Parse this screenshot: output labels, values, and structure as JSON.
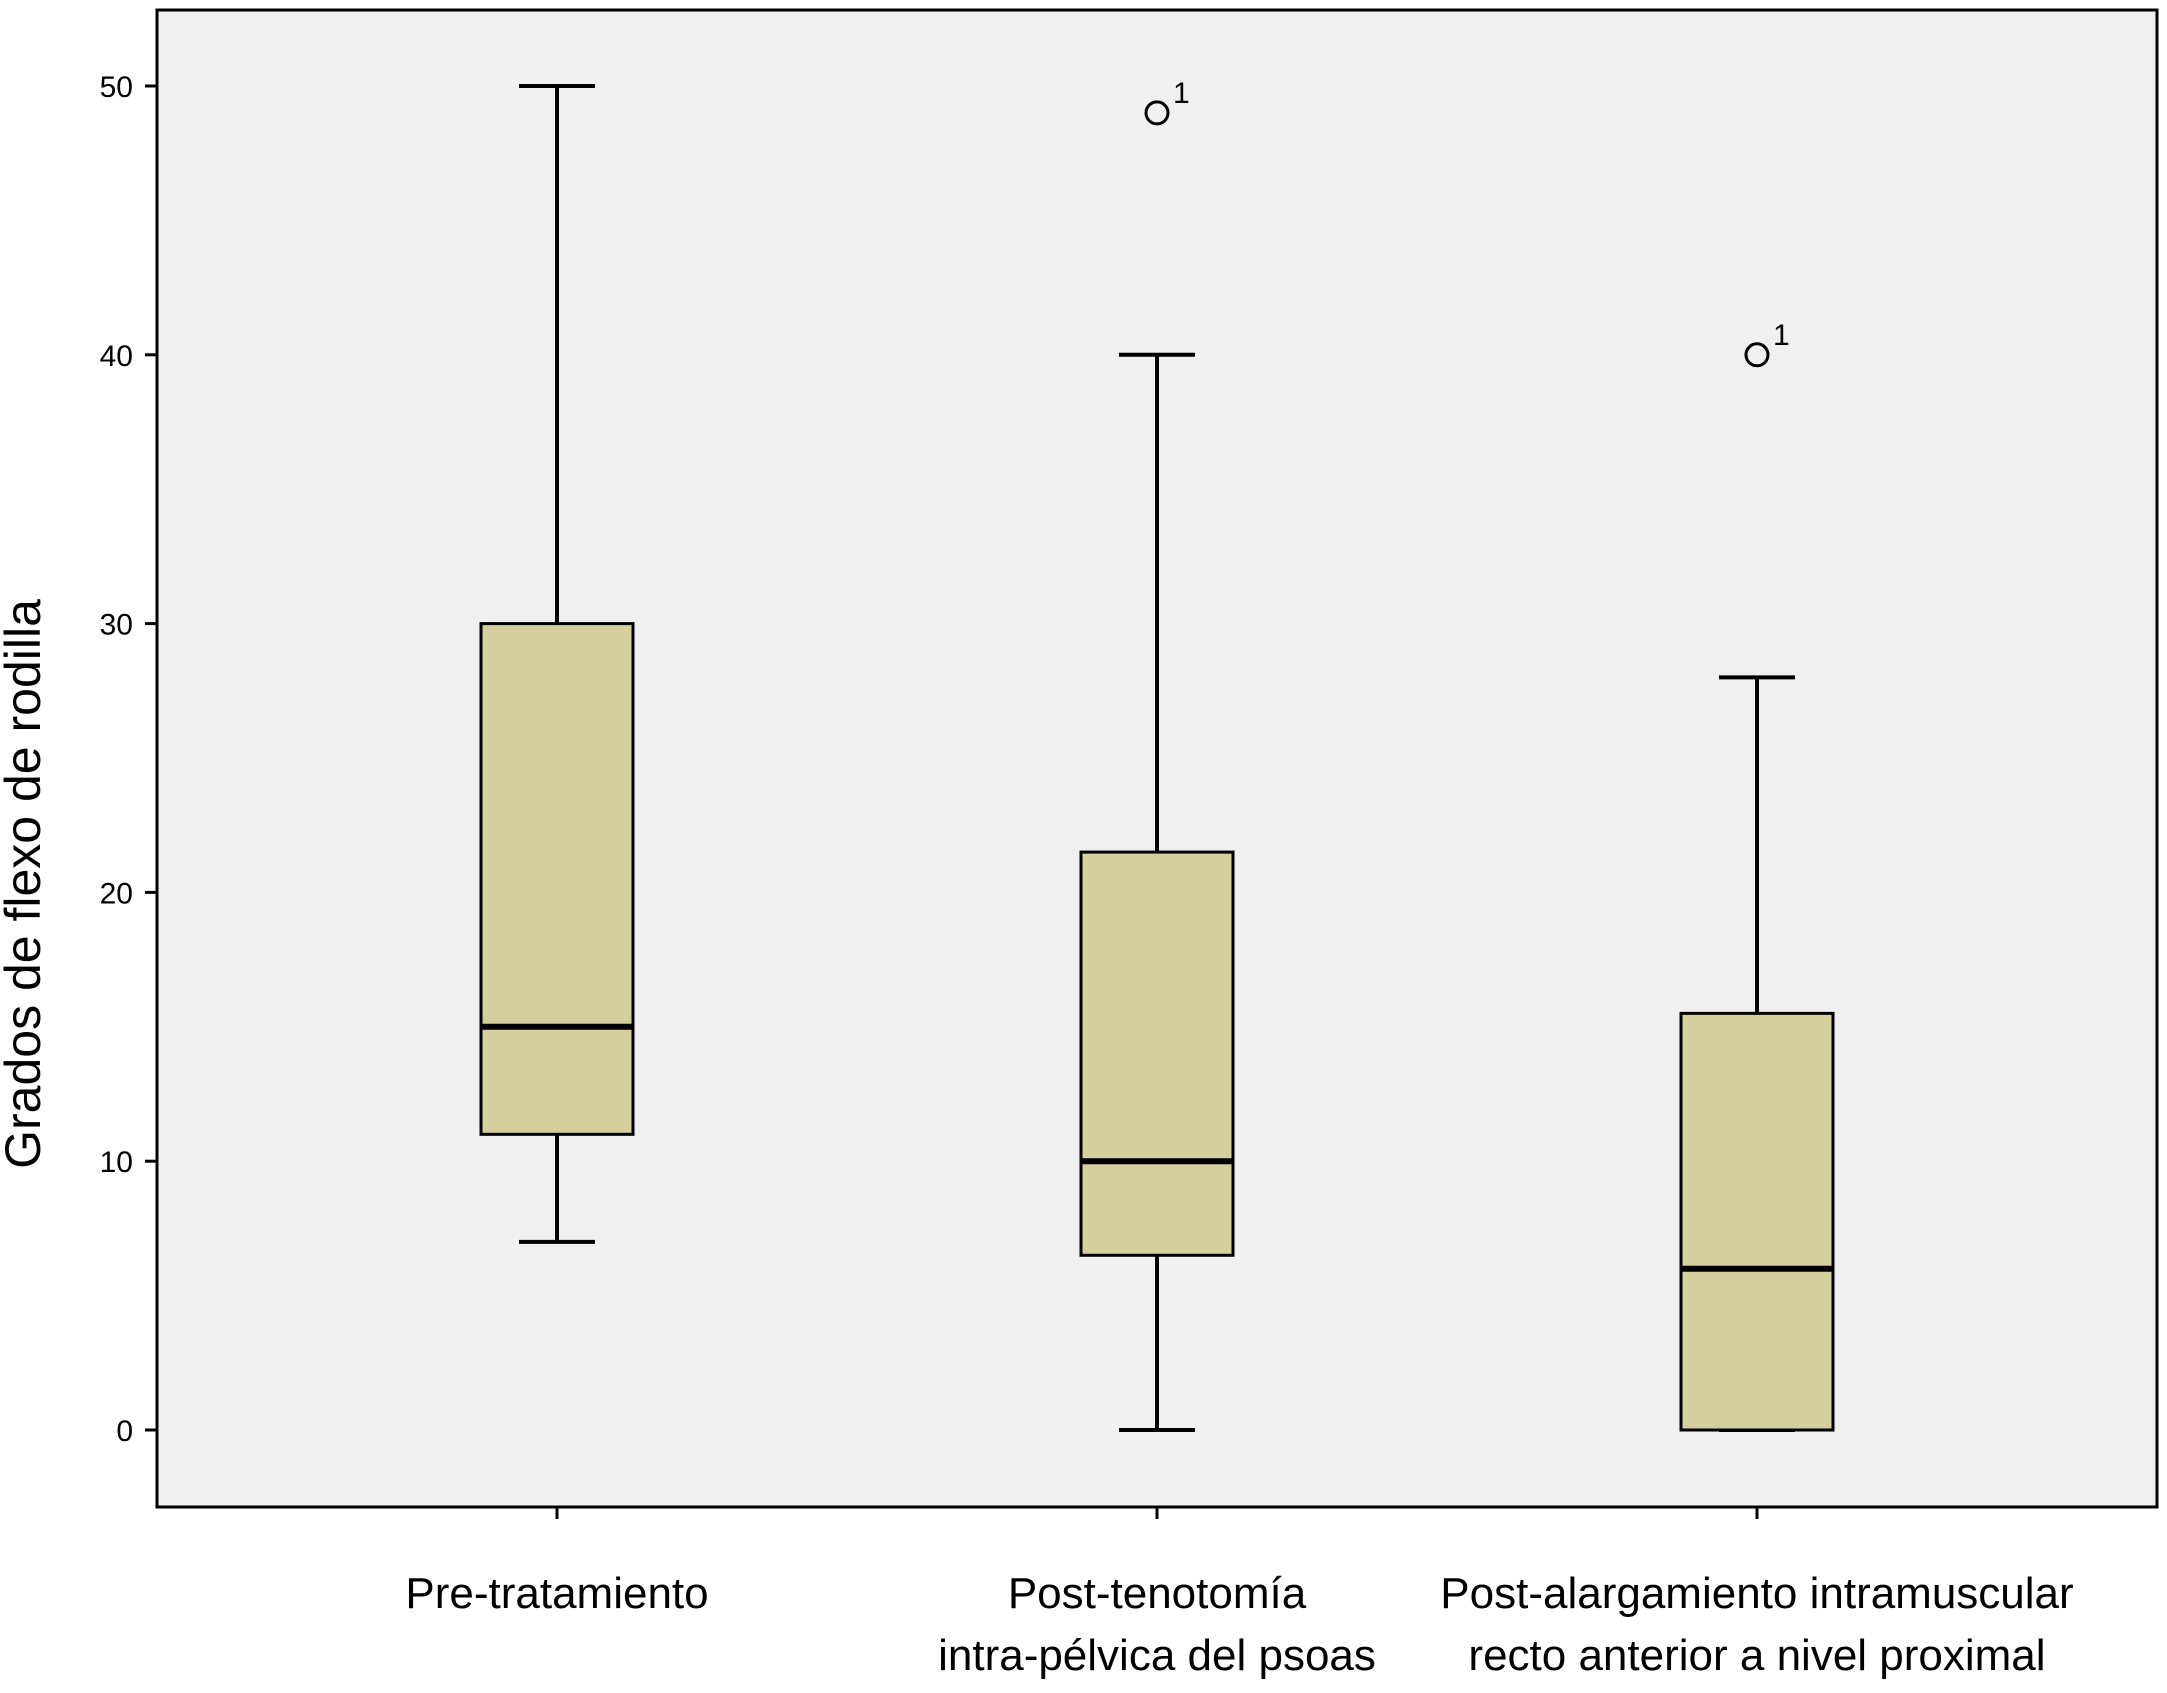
{
  "chart_data": {
    "type": "boxplot",
    "title": "",
    "ylabel": "Grados de flexo de rodilla",
    "xlabel": "",
    "ylim": [
      -2.8,
      52.8
    ],
    "yticks": [
      "0",
      "10",
      "20",
      "30",
      "40",
      "50"
    ],
    "grid": false,
    "colors": {
      "plot_background": "#f0f0f0",
      "box_fill": "#d4cf9d",
      "stroke": "#000000"
    },
    "categories": [
      {
        "label_lines": [
          "Pre-tratamiento"
        ],
        "whisker_low": 7,
        "q1": 11,
        "median": 15,
        "q3": 30,
        "whisker_high": 50,
        "outliers": []
      },
      {
        "label_lines": [
          "Post-tenotomía",
          "intra-pélvica del psoas"
        ],
        "whisker_low": 0,
        "q1": 6.5,
        "median": 10,
        "q3": 21.5,
        "whisker_high": 40,
        "outliers": [
          {
            "value": 49,
            "label": "1"
          }
        ]
      },
      {
        "label_lines": [
          "Post-alargamiento intramuscular",
          "recto anterior a nivel proximal"
        ],
        "whisker_low": 0,
        "q1": 0,
        "median": 6,
        "q3": 15.5,
        "whisker_high": 28,
        "outliers": [
          {
            "value": 40,
            "label": "1"
          }
        ]
      }
    ]
  }
}
